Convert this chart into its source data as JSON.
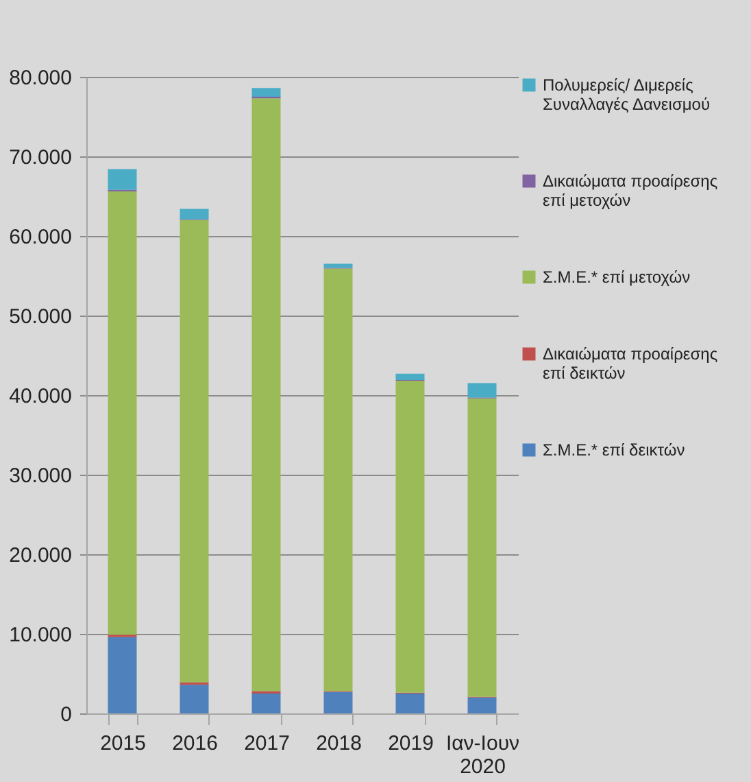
{
  "chart_data": {
    "type": "bar",
    "stacked": true,
    "categories": [
      "2015",
      "2016",
      "2017",
      "2018",
      "2019",
      "Ιαν-Ιουν 2020"
    ],
    "series": [
      {
        "name": "Σ.Μ.Ε.* επί δεικτών",
        "color": "#4f81bd",
        "values": [
          9600,
          3600,
          2500,
          2700,
          2500,
          2000
        ]
      },
      {
        "name": "Δικαιώματα προαίρεσης επί δεικτών",
        "color": "#c0504d",
        "values": [
          300,
          300,
          300,
          100,
          100,
          100
        ]
      },
      {
        "name": "Σ.Μ.Ε.* επί μετοχών",
        "color": "#9bbb59",
        "values": [
          55700,
          58100,
          74500,
          53100,
          39200,
          37500
        ]
      },
      {
        "name": "Δικαιώματα προαίρεσης επί μετοχών",
        "color": "#8064a2",
        "values": [
          200,
          100,
          200,
          100,
          100,
          100
        ]
      },
      {
        "name": "Πολυμερείς/ Διμερείς Συναλλαγές Δανεισμού",
        "color": "#4bacc6",
        "values": [
          2600,
          1300,
          1100,
          500,
          800,
          1800
        ]
      }
    ],
    "ylim": [
      0,
      80000
    ],
    "yticks": [
      {
        "value": 0,
        "label": "0"
      },
      {
        "value": 10000,
        "label": "10.000"
      },
      {
        "value": 20000,
        "label": "20.000"
      },
      {
        "value": 30000,
        "label": "30.000"
      },
      {
        "value": 40000,
        "label": "40.000"
      },
      {
        "value": 50000,
        "label": "50.000"
      },
      {
        "value": 60000,
        "label": "60.000"
      },
      {
        "value": 70000,
        "label": "70.000"
      },
      {
        "value": 80000,
        "label": "80.000"
      }
    ],
    "grid": "y",
    "legend": "right"
  }
}
